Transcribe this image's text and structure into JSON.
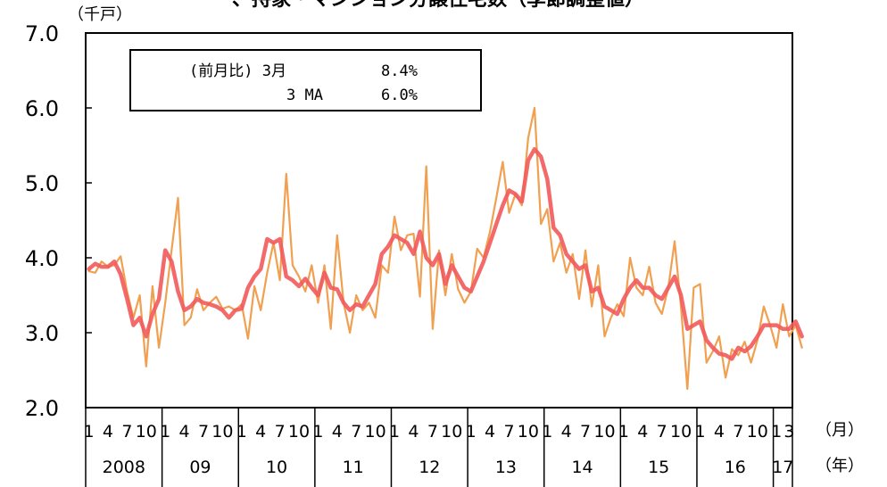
{
  "title_fragment": "、持家・マンション分譲住宅数（季節調整値）",
  "y_unit": "（千戸）",
  "x_unit_month": "（月）",
  "x_unit_year": "（年）",
  "legend": {
    "row1_label": "(前月比) 3月",
    "row1_value": "8.4%",
    "row2_label": "3 MA",
    "row2_value": "6.0%"
  },
  "chart_data": {
    "type": "line",
    "ylim": [
      2.0,
      7.0
    ],
    "yticks": [
      "7.0",
      "6.0",
      "5.0",
      "4.0",
      "3.0",
      "2.0"
    ],
    "month_ticks": [
      "1",
      "4",
      "7",
      "10"
    ],
    "last_month_ticks": [
      "1",
      "3"
    ],
    "years": [
      "2008",
      "09",
      "10",
      "11",
      "12",
      "13",
      "14",
      "15",
      "16",
      "17"
    ],
    "start": "2008-01",
    "end": "2017-03",
    "colors": {
      "monthly": "#f0a050",
      "ma3": "#f25a5a"
    },
    "series": [
      {
        "values": [
          3.82,
          3.8,
          3.95,
          3.88,
          3.9,
          4.02,
          3.55,
          3.2,
          3.5,
          2.55,
          3.62,
          2.8,
          3.4,
          4.1,
          4.8,
          3.1,
          3.2,
          3.58,
          3.3,
          3.4,
          3.48,
          3.32,
          3.35,
          3.3,
          3.38,
          2.92,
          3.62,
          3.3,
          3.8,
          4.2,
          3.7,
          5.12,
          3.9,
          3.75,
          3.55,
          3.9,
          3.4,
          3.9,
          3.05,
          4.3,
          3.4,
          3.0,
          3.5,
          3.3,
          3.4,
          3.2,
          3.9,
          3.8,
          4.55,
          4.1,
          4.3,
          4.32,
          3.48,
          5.22,
          3.05,
          4.1,
          3.5,
          4.05,
          3.58,
          3.4,
          3.55,
          4.12,
          4.0,
          4.35,
          4.8,
          5.28,
          4.6,
          4.85,
          4.7,
          5.6,
          6.0,
          4.45,
          4.65,
          3.95,
          4.2,
          3.8,
          4.05,
          3.45,
          4.1,
          3.35,
          3.9,
          2.95,
          3.2,
          3.38,
          3.22,
          4.0,
          3.6,
          3.5,
          3.88,
          3.4,
          3.25,
          3.6,
          4.22,
          3.35,
          2.25,
          3.6,
          3.65,
          2.6,
          2.75,
          2.95,
          2.4,
          2.78,
          2.7,
          2.88,
          2.6,
          2.9,
          3.35,
          3.1,
          2.8,
          3.38,
          2.95,
          3.1,
          2.8
        ]
      },
      {
        "values": [
          3.85,
          3.92,
          3.88,
          3.88,
          3.95,
          3.78,
          3.45,
          3.1,
          3.2,
          2.95,
          3.25,
          3.45,
          4.1,
          3.95,
          3.55,
          3.3,
          3.35,
          3.45,
          3.4,
          3.38,
          3.35,
          3.3,
          3.2,
          3.3,
          3.32,
          3.6,
          3.75,
          3.85,
          4.25,
          4.2,
          4.25,
          3.75,
          3.7,
          3.62,
          3.72,
          3.6,
          3.5,
          3.8,
          3.6,
          3.58,
          3.4,
          3.3,
          3.38,
          3.35,
          3.5,
          3.65,
          4.05,
          4.15,
          4.3,
          4.25,
          4.2,
          4.05,
          4.35,
          4.0,
          3.9,
          4.05,
          3.65,
          3.9,
          3.75,
          3.6,
          3.55,
          3.75,
          3.95,
          4.2,
          4.45,
          4.7,
          4.9,
          4.85,
          4.75,
          5.3,
          5.45,
          5.35,
          5.05,
          4.4,
          4.3,
          4.05,
          3.95,
          3.85,
          3.9,
          3.55,
          3.6,
          3.35,
          3.3,
          3.25,
          3.45,
          3.6,
          3.7,
          3.6,
          3.6,
          3.5,
          3.45,
          3.6,
          3.75,
          3.5,
          3.05,
          3.1,
          3.15,
          2.9,
          2.8,
          2.72,
          2.7,
          2.65,
          2.8,
          2.75,
          2.82,
          2.95,
          3.1,
          3.1,
          3.1,
          3.05,
          3.05,
          3.15,
          2.95
        ]
      }
    ]
  }
}
